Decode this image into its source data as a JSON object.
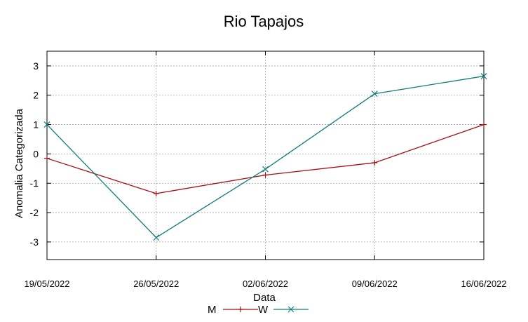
{
  "chart_data": {
    "type": "line",
    "title": "Rio Tapajos",
    "xlabel": "Data",
    "ylabel": "Anomalia Categorizada",
    "categories": [
      "19/05/2022",
      "26/05/2022",
      "02/06/2022",
      "09/06/2022",
      "16/06/2022"
    ],
    "ylim": [
      -3.6,
      3.5
    ],
    "yticks": [
      -3,
      -2,
      -1,
      0,
      1,
      2,
      3
    ],
    "grid": true,
    "legend_position": "bottom",
    "series": [
      {
        "name": "M",
        "color": "#a50f15",
        "marker": "plus",
        "values": [
          -0.15,
          -1.35,
          -0.72,
          -0.3,
          1.0
        ]
      },
      {
        "name": "W",
        "color": "#127c7c",
        "marker": "x",
        "values": [
          1.0,
          -2.85,
          -0.52,
          2.05,
          2.65
        ]
      }
    ]
  }
}
